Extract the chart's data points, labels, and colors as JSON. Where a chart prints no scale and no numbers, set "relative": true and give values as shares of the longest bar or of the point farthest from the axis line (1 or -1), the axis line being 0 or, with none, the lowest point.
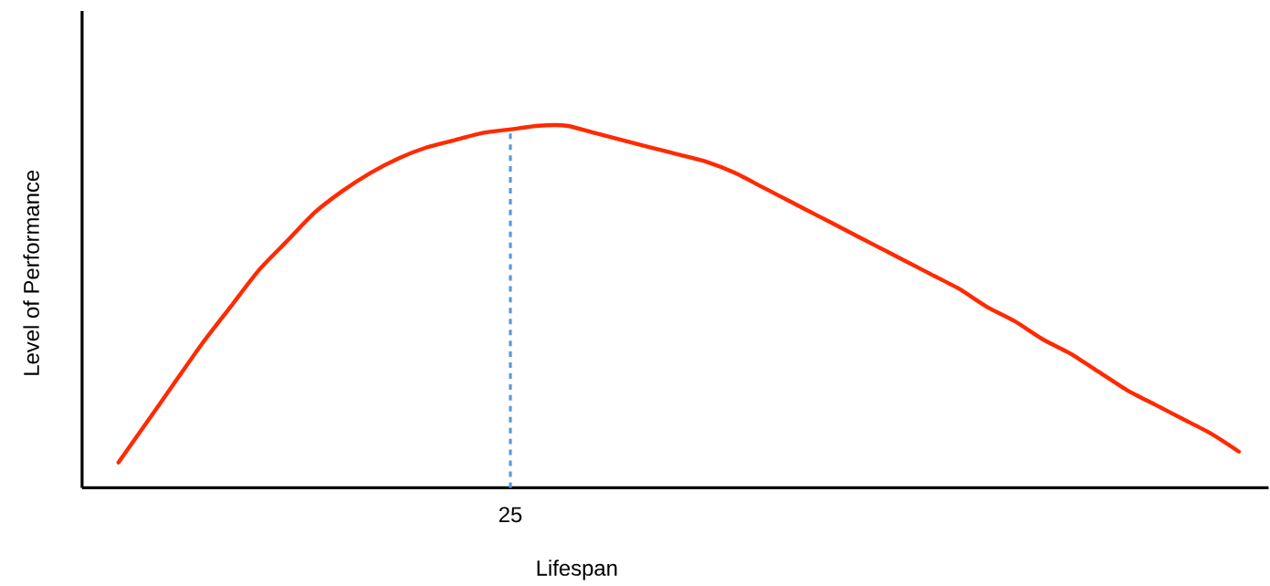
{
  "chart_data": {
    "type": "line",
    "relative": true,
    "xlabel": "Lifespan",
    "ylabel": "Level of Performance",
    "marker": "none",
    "line_style": "solid",
    "annotations": [
      "25"
    ],
    "categories": [
      null,
      null,
      null,
      null,
      null,
      null,
      null,
      null,
      null,
      null,
      null,
      null,
      null,
      null,
      null,
      null,
      null,
      null,
      null,
      null,
      null,
      null,
      null,
      null,
      null,
      null,
      null,
      null,
      null,
      null,
      null,
      null,
      null,
      null,
      null,
      null,
      null,
      null,
      null,
      null,
      null
    ],
    "series": [
      {
        "color": "#ff2a00",
        "values": [
          0.07,
          0.18,
          0.29,
          0.4,
          0.5,
          0.6,
          0.68,
          0.76,
          0.82,
          0.87,
          0.91,
          0.94,
          0.96,
          0.98,
          0.99,
          1.0,
          1.0,
          0.98,
          0.96,
          0.94,
          0.92,
          0.9,
          0.87,
          0.83,
          0.79,
          0.75,
          0.71,
          0.67,
          0.63,
          0.59,
          0.55,
          0.5,
          0.46,
          0.41,
          0.37,
          0.32,
          0.27,
          0.23,
          0.19,
          0.15,
          0.1
        ]
      }
    ]
  }
}
